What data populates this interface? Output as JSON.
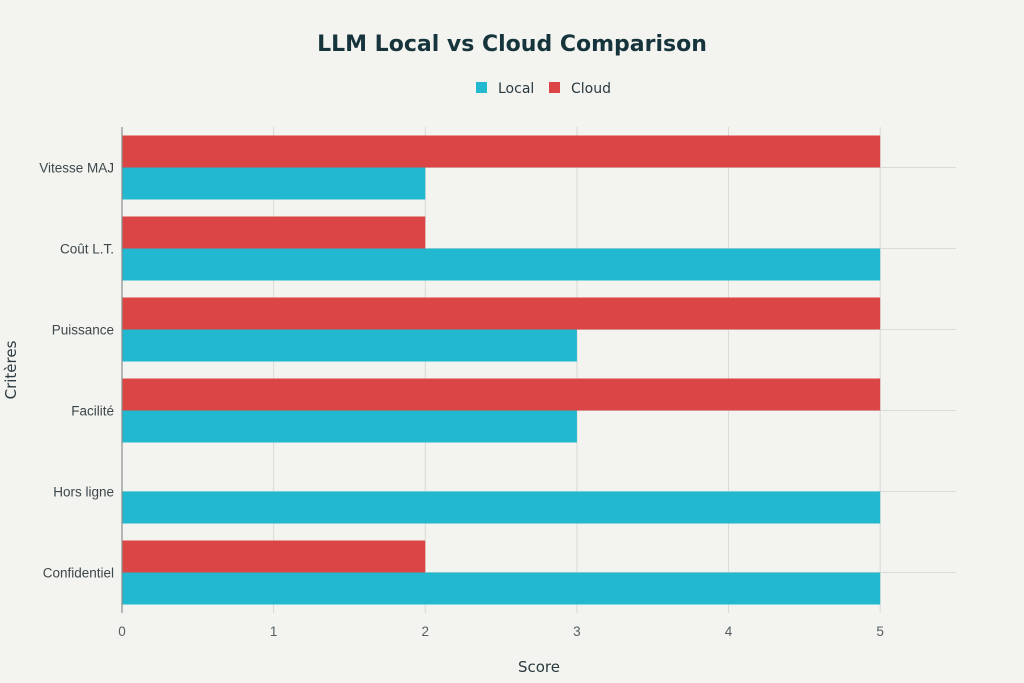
{
  "chart_data": {
    "type": "bar",
    "orientation": "horizontal",
    "title": "LLM Local vs Cloud Comparison",
    "xlabel": "Score",
    "ylabel": "Critères",
    "xlim": [
      0,
      5.5
    ],
    "xticks": [
      0,
      1,
      2,
      3,
      4,
      5
    ],
    "grid": true,
    "legend_position": "top-center",
    "categories": [
      "Vitesse MAJ",
      "Coût L.T.",
      "Puissance",
      "Facilité",
      "Hors ligne",
      "Confidentiel"
    ],
    "series": [
      {
        "name": "Local",
        "color": "#22b8cf",
        "values": [
          2,
          5,
          3,
          3,
          5,
          5
        ]
      },
      {
        "name": "Cloud",
        "color": "#db4545",
        "values": [
          5,
          2,
          5,
          5,
          0,
          2
        ]
      }
    ]
  }
}
